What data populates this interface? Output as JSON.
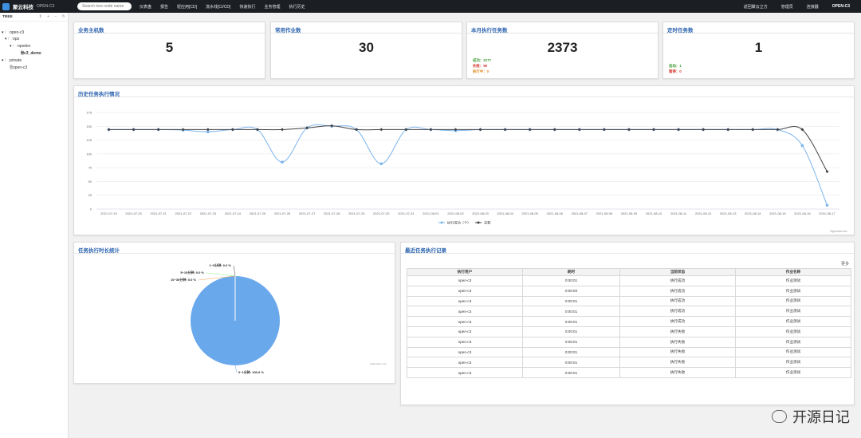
{
  "header": {
    "brand": "聚云科技",
    "brand_sub": "OPEN-C3",
    "search_placeholder": "Search tree node name",
    "nav": [
      "仪表盘",
      "报告",
      "轻应用[CD]",
      "流水线[CI/CD]",
      "快速执行",
      "业务管理",
      "执行历史"
    ],
    "nav_right": [
      "返回聚云立方",
      "管理员",
      "连接器",
      "OPEN-C3"
    ]
  },
  "tree": {
    "title": "TREE",
    "nodes": [
      {
        "label": "open-c3",
        "prefix": "▾ 🗁",
        "bold": false
      },
      {
        "label": "ops",
        "prefix": "▾ 🗁",
        "bold": false
      },
      {
        "label": "opsdev",
        "prefix": "▾ 🗁",
        "bold": false
      },
      {
        "label": "c3_demo",
        "prefix": "🗎",
        "bold": true
      },
      {
        "label": "private",
        "prefix": "▾ 🗁",
        "bold": false
      },
      {
        "label": "open-c3",
        "prefix": "🗎",
        "bold": false
      }
    ]
  },
  "stats": [
    {
      "title": "业务主机数",
      "value": "5",
      "subs": []
    },
    {
      "title": "常用作业数",
      "value": "30",
      "subs": []
    },
    {
      "title": "本月执行任务数",
      "value": "2373",
      "subs": [
        {
          "label": "成功：",
          "value": "2277",
          "color": "#3a9a2e"
        },
        {
          "label": "失败：",
          "value": "96",
          "color": "#d43a2f"
        },
        {
          "label": "执行中：",
          "value": "0",
          "color": "#e08a1e"
        }
      ]
    },
    {
      "title": "定时任务数",
      "value": "1",
      "subs": [
        {
          "label": "启动：",
          "value": "1",
          "color": "#3a9a2e"
        },
        {
          "label": "暂停：",
          "value": "0",
          "color": "#d43a2f"
        }
      ]
    }
  ],
  "history": {
    "title": "历史任务执行情况",
    "credit": "Highcharts.com"
  },
  "chart_data": [
    {
      "type": "line",
      "title": "",
      "ylim": [
        0,
        175
      ],
      "yticks": [
        0,
        25,
        50,
        75,
        100,
        125,
        150,
        175
      ],
      "categories": [
        "2021-07-19",
        "2021-07-20",
        "2021-07-21",
        "2021-07-22",
        "2021-07-23",
        "2021-07-24",
        "2021-07-25",
        "2021-07-26",
        "2021-07-27",
        "2021-07-28",
        "2021-07-29",
        "2021-07-30",
        "2021-07-31",
        "2021-08-01",
        "2021-08-02",
        "2021-08-03",
        "2021-08-04",
        "2021-08-05",
        "2021-08-06",
        "2021-08-07",
        "2021-08-08",
        "2021-08-09",
        "2021-08-10",
        "2021-08-11",
        "2021-08-12",
        "2021-08-13",
        "2021-08-14",
        "2021-08-15",
        "2021-08-16",
        "2021-08-17"
      ],
      "series": [
        {
          "name": "执行成功（个）",
          "color": "#7cb5ec",
          "values": [
            144,
            144,
            144,
            143,
            140,
            144,
            144,
            85,
            147,
            150,
            144,
            82,
            144,
            144,
            142,
            144,
            144,
            144,
            144,
            144,
            144,
            144,
            144,
            144,
            144,
            144,
            144,
            144,
            115,
            7
          ]
        },
        {
          "name": "总数",
          "color": "#434348",
          "values": [
            144,
            144,
            144,
            144,
            144,
            144,
            144,
            144,
            147,
            151,
            144,
            144,
            144,
            144,
            144,
            144,
            144,
            144,
            144,
            144,
            144,
            144,
            144,
            144,
            144,
            144,
            144,
            144,
            144,
            68
          ]
        }
      ],
      "legend": "bottom-center",
      "grid": true
    },
    {
      "type": "pie",
      "title": "",
      "slices": [
        {
          "label": "0~1分钟",
          "value": 100.0,
          "color": "#6aa8ec"
        },
        {
          "label": "1~5分钟",
          "value": 0.0,
          "color": "#434348"
        },
        {
          "label": "5~10分钟",
          "value": 0.0,
          "color": "#90ed7d"
        },
        {
          "label": "10~30分钟",
          "value": 0.0,
          "color": "#f7a35c"
        },
        {
          "label": "30分钟以上",
          "value": 0.0,
          "color": "#8085e9"
        }
      ]
    }
  ],
  "pie_card": {
    "title": "任务执行时长统计",
    "labels": [
      "0~1分钟: 100.0 %",
      "1~5分钟: 0.0 %",
      "5~10分钟: 0.0 %",
      "10~30分钟: 0.0 %",
      "30分钟以上: 0.0 %"
    ],
    "credit": "Highcharts.com"
  },
  "records": {
    "title": "最近任务执行记录",
    "more": "更多",
    "columns": [
      "执行用户",
      "耗时",
      "当前状态",
      "作业名称"
    ],
    "rows": [
      [
        "open-c3",
        "0:00:01",
        "执行成功",
        "作业测试"
      ],
      [
        "open-c3",
        "0:00:00",
        "执行成功",
        "作业测试"
      ],
      [
        "open-c3",
        "0:00:01",
        "执行成功",
        "作业测试"
      ],
      [
        "open-c3",
        "0:00:01",
        "执行成功",
        "作业测试"
      ],
      [
        "open-c3",
        "0:00:01",
        "执行成功",
        "作业测试"
      ],
      [
        "open-c3",
        "0:00:01",
        "执行失败",
        "作业测试"
      ],
      [
        "open-c3",
        "0:00:01",
        "执行失败",
        "作业测试"
      ],
      [
        "open-c3",
        "0:00:01",
        "执行失败",
        "作业测试"
      ],
      [
        "open-c3",
        "0:00:01",
        "执行失败",
        "作业测试"
      ],
      [
        "open-c3",
        "0:00:01",
        "执行失败",
        "作业测试"
      ]
    ]
  },
  "watermark": {
    "text": "开源日记",
    "icon": "wechat-icon"
  }
}
